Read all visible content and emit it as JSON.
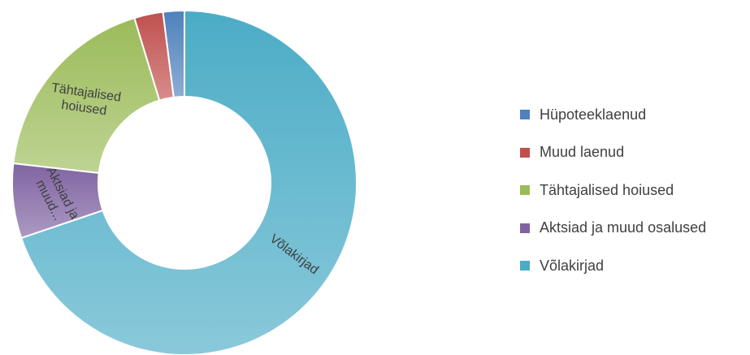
{
  "chart_data": {
    "type": "pie",
    "variant": "donut",
    "title": "",
    "legend_position": "right",
    "slices": [
      {
        "name": "Hüpoteeklaenud",
        "value": 2.0,
        "color": "#4f81bd",
        "label": ""
      },
      {
        "name": "Muud laenud",
        "value": 2.7,
        "color": "#c0504d",
        "label": ""
      },
      {
        "name": "Tähtajalised hoiused",
        "value": 18.5,
        "color": "#9bbb59",
        "label_lines": [
          "Tähtajalised",
          "hoiused"
        ]
      },
      {
        "name": "Aktsiad ja muud osalused",
        "value": 7.0,
        "color": "#8064a2",
        "label_lines": [
          "Aktsiad ja",
          "muud..."
        ]
      },
      {
        "name": "Võlakirjad",
        "value": 69.8,
        "color": "#4bacc6",
        "label_lines": [
          "Võlakirjad"
        ]
      }
    ],
    "legend": [
      {
        "label": "Hüpoteeklaenud",
        "color": "#4f81bd"
      },
      {
        "label": "Muud laenud",
        "color": "#c0504d"
      },
      {
        "label": "Tähtajalised hoiused",
        "color": "#9bbb59"
      },
      {
        "label": "Aktsiad ja muud osalused",
        "color": "#8064a2"
      },
      {
        "label": "Võlakirjad",
        "color": "#4bacc6"
      }
    ]
  }
}
